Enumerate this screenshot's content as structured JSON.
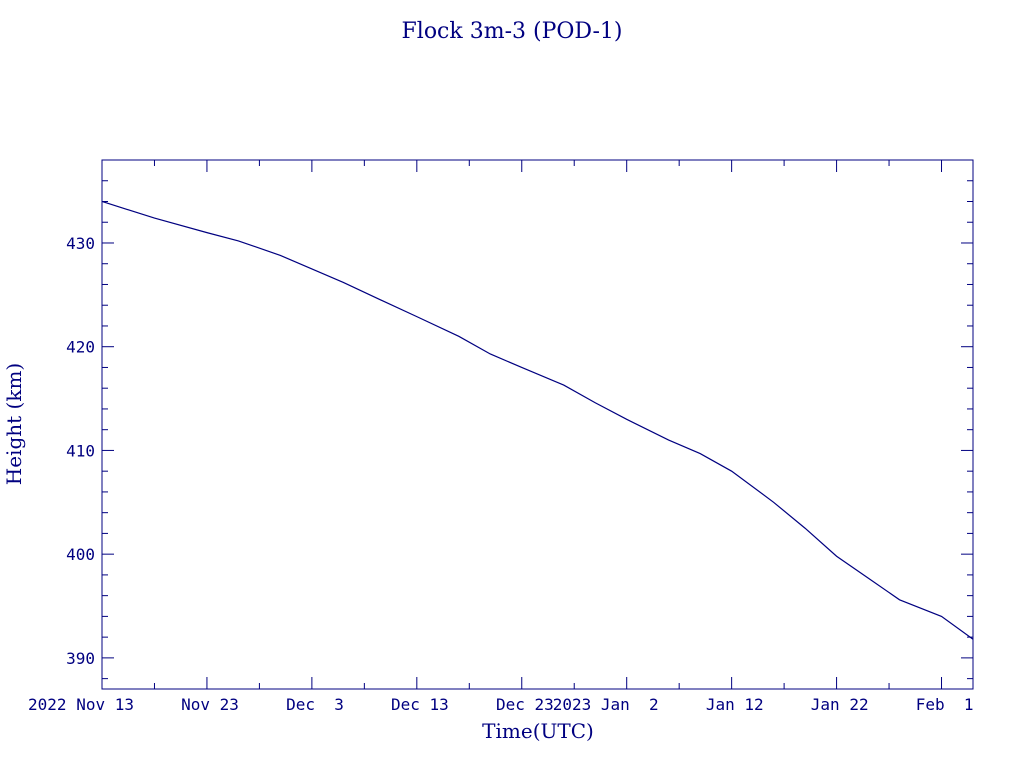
{
  "chart_data": {
    "type": "line",
    "title": "Flock 3m-3 (POD-1)",
    "xlabel": "Time(UTC)",
    "ylabel": "Height (km)",
    "x_tick_labels": [
      "2022 Nov 13",
      "Nov 23",
      "Dec  3",
      "Dec 13",
      "Dec 23",
      "2023 Jan  2",
      "Jan 12",
      "Jan 22",
      "Feb  1"
    ],
    "x_tick_dates": [
      "2022-11-13",
      "2022-11-23",
      "2022-12-03",
      "2022-12-13",
      "2022-12-23",
      "2023-01-02",
      "2023-01-12",
      "2023-01-22",
      "2023-02-01"
    ],
    "y_tick_labels": [
      "390",
      "400",
      "410",
      "420",
      "430"
    ],
    "y_ticks": [
      390,
      400,
      410,
      420,
      430
    ],
    "xlim": [
      "2022-11-13",
      "2023-02-04"
    ],
    "ylim": [
      387,
      438
    ],
    "grid": false,
    "color": "#000080",
    "series": [
      {
        "x": [
          "2022-11-13",
          "2022-11-18",
          "2022-11-23",
          "2022-11-26",
          "2022-11-30",
          "2022-12-03",
          "2022-12-06",
          "2022-12-10",
          "2022-12-13",
          "2022-12-17",
          "2022-12-20",
          "2022-12-23",
          "2022-12-27",
          "2022-12-30",
          "2023-01-02",
          "2023-01-06",
          "2023-01-09",
          "2023-01-12",
          "2023-01-16",
          "2023-01-19",
          "2023-01-22",
          "2023-01-25",
          "2023-01-28",
          "2023-02-01",
          "2023-02-04"
        ],
        "y": [
          434.0,
          432.4,
          431.0,
          430.2,
          428.8,
          427.5,
          426.2,
          424.3,
          422.9,
          421.0,
          419.3,
          418.0,
          416.3,
          414.6,
          413.0,
          411.0,
          409.7,
          408.0,
          405.0,
          402.5,
          399.8,
          397.7,
          395.6,
          394.0,
          391.8
        ]
      }
    ]
  }
}
